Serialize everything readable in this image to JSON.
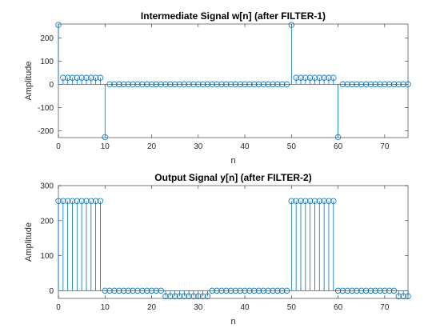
{
  "chart_data": [
    {
      "type": "stem",
      "title": "Intermediate Signal w[n] (after FILTER-1)",
      "xlabel": "n",
      "ylabel": "Amplitude",
      "xlim": [
        0,
        75
      ],
      "ylim": [
        -230,
        260
      ],
      "xticks": [
        0,
        10,
        20,
        30,
        40,
        50,
        60,
        70
      ],
      "yticks": [
        -200,
        -100,
        0,
        100,
        200
      ],
      "grid": false,
      "color": "#0072BD",
      "x": [
        0,
        1,
        2,
        3,
        4,
        5,
        6,
        7,
        8,
        9,
        10,
        11,
        12,
        13,
        14,
        15,
        16,
        17,
        18,
        19,
        20,
        21,
        22,
        23,
        24,
        25,
        26,
        27,
        28,
        29,
        30,
        31,
        32,
        33,
        34,
        35,
        36,
        37,
        38,
        39,
        40,
        41,
        42,
        43,
        44,
        45,
        46,
        47,
        48,
        49,
        50,
        51,
        52,
        53,
        54,
        55,
        56,
        57,
        58,
        59,
        60,
        61,
        62,
        63,
        64,
        65,
        66,
        67,
        68,
        69,
        70,
        71,
        72,
        73,
        74,
        75
      ],
      "y": [
        256,
        28,
        28,
        28,
        28,
        28,
        28,
        28,
        28,
        28,
        -228,
        0,
        0,
        0,
        0,
        0,
        0,
        0,
        0,
        0,
        0,
        0,
        0,
        0,
        0,
        0,
        0,
        0,
        0,
        0,
        0,
        0,
        0,
        0,
        0,
        0,
        0,
        0,
        0,
        0,
        0,
        0,
        0,
        0,
        0,
        0,
        0,
        0,
        0,
        0,
        256,
        28,
        28,
        28,
        28,
        28,
        28,
        28,
        28,
        28,
        -228,
        0,
        0,
        0,
        0,
        0,
        0,
        0,
        0,
        0,
        0,
        0,
        0,
        0,
        0,
        0
      ]
    },
    {
      "type": "stem",
      "title": "Output Signal y[n] (after FILTER-2)",
      "xlabel": "n",
      "ylabel": "Amplitude",
      "xlim": [
        0,
        75
      ],
      "ylim": [
        -22,
        300
      ],
      "xticks": [
        0,
        10,
        20,
        30,
        40,
        50,
        60,
        70
      ],
      "yticks": [
        0,
        100,
        200,
        300
      ],
      "grid": false,
      "color": "#0072BD",
      "x": [
        0,
        1,
        2,
        3,
        4,
        5,
        6,
        7,
        8,
        9,
        10,
        11,
        12,
        13,
        14,
        15,
        16,
        17,
        18,
        19,
        20,
        21,
        22,
        23,
        24,
        25,
        26,
        27,
        28,
        29,
        30,
        31,
        32,
        33,
        34,
        35,
        36,
        37,
        38,
        39,
        40,
        41,
        42,
        43,
        44,
        45,
        46,
        47,
        48,
        49,
        50,
        51,
        52,
        53,
        54,
        55,
        56,
        57,
        58,
        59,
        60,
        61,
        62,
        63,
        64,
        65,
        66,
        67,
        68,
        69,
        70,
        71,
        72,
        73,
        74,
        75
      ],
      "y": [
        256,
        256,
        256,
        256,
        256,
        256,
        256,
        256,
        256,
        256,
        0,
        0,
        0,
        0,
        0,
        0,
        0,
        0,
        0,
        0,
        0,
        0,
        0,
        -16,
        -16,
        -16,
        -16,
        -16,
        -16,
        -16,
        -16,
        -16,
        -16,
        0,
        0,
        0,
        0,
        0,
        0,
        0,
        0,
        0,
        0,
        0,
        0,
        0,
        0,
        0,
        0,
        0,
        256,
        256,
        256,
        256,
        256,
        256,
        256,
        256,
        256,
        256,
        0,
        0,
        0,
        0,
        0,
        0,
        0,
        0,
        0,
        0,
        0,
        0,
        0,
        -16,
        -16,
        -16
      ]
    }
  ]
}
